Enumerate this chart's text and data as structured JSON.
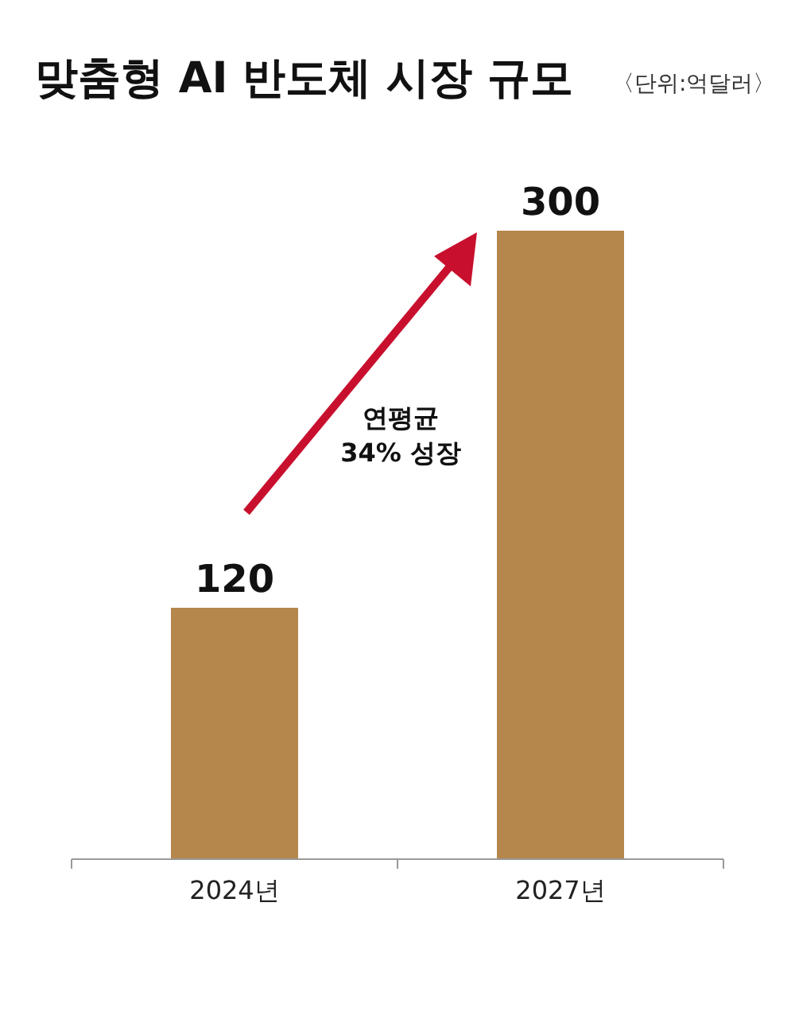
{
  "chart_data": {
    "type": "bar",
    "title": "맞춤형 AI 반도체 시장 규모",
    "subtitle": "〈단위:억달러〉",
    "categories": [
      "2024년",
      "2027년"
    ],
    "values": [
      120,
      300
    ],
    "color": "#b5874c",
    "data_labels": true,
    "annotations": [
      "연평균\n34% 성장"
    ]
  }
}
